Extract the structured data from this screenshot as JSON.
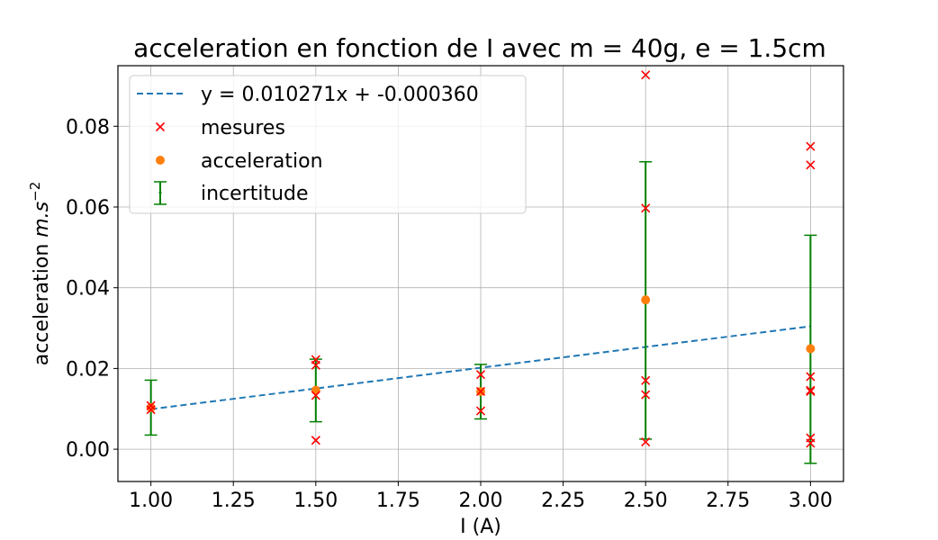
{
  "chart_data": {
    "type": "scatter",
    "title": "acceleration en fonction de I avec m = 40g, e = 1.5cm",
    "xlabel": "I (A)",
    "ylabel_text": "acceleration ",
    "ylabel_unit": "m.s",
    "ylabel_exp": "−2",
    "xlim": [
      0.9,
      3.1
    ],
    "ylim": [
      -0.008,
      0.095
    ],
    "xticks": [
      1.0,
      1.25,
      1.5,
      1.75,
      2.0,
      2.25,
      2.5,
      2.75,
      3.0
    ],
    "xtick_labels": [
      "1.00",
      "1.25",
      "1.50",
      "1.75",
      "2.00",
      "2.25",
      "2.50",
      "2.75",
      "3.00"
    ],
    "yticks": [
      0.0,
      0.02,
      0.04,
      0.06,
      0.08
    ],
    "ytick_labels": [
      "0.00",
      "0.02",
      "0.04",
      "0.06",
      "0.08"
    ],
    "grid": true,
    "legend_position": "top-left",
    "colors": {
      "fit": "#1f77b4",
      "mesures": "#ff0000",
      "acceleration": "#ff7f0e",
      "incertitude": "#008000"
    },
    "fit": {
      "name": "y = 0.010271x + -0.000360",
      "slope": 0.010271,
      "intercept": -0.00036,
      "x_range": [
        1.0,
        3.0
      ]
    },
    "mesures": {
      "name": "mesures",
      "points": [
        [
          1.0,
          0.0108
        ],
        [
          1.0,
          0.0098
        ],
        [
          1.5,
          0.0222
        ],
        [
          1.5,
          0.0208
        ],
        [
          1.5,
          0.0133
        ],
        [
          1.5,
          0.0022
        ],
        [
          2.0,
          0.0185
        ],
        [
          2.0,
          0.0143
        ],
        [
          2.0,
          0.0095
        ],
        [
          2.5,
          0.0927
        ],
        [
          2.5,
          0.0597
        ],
        [
          2.5,
          0.017
        ],
        [
          2.5,
          0.0135
        ],
        [
          2.5,
          0.0018
        ],
        [
          3.0,
          0.075
        ],
        [
          3.0,
          0.0704
        ],
        [
          3.0,
          0.018
        ],
        [
          3.0,
          0.0146
        ],
        [
          3.0,
          0.0143
        ],
        [
          3.0,
          0.0028
        ],
        [
          3.0,
          0.0015
        ]
      ]
    },
    "acceleration": {
      "name": "acceleration",
      "x": [
        1.0,
        1.5,
        2.0,
        2.5,
        3.0
      ],
      "y": [
        0.0103,
        0.0146,
        0.0143,
        0.037,
        0.0249
      ]
    },
    "incertitude": {
      "name": "incertitude",
      "x": [
        1.0,
        1.5,
        2.0,
        2.5,
        3.0
      ],
      "low": [
        0.0035,
        0.0068,
        0.0075,
        0.0025,
        -0.0035
      ],
      "high": [
        0.0171,
        0.0223,
        0.021,
        0.0712,
        0.053
      ]
    }
  }
}
